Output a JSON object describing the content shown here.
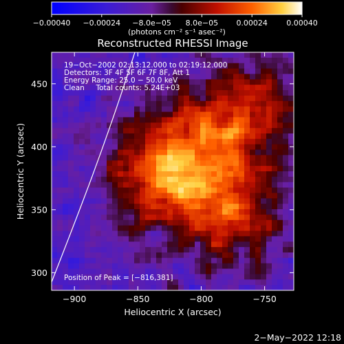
{
  "chart_data": {
    "type": "heatmap",
    "title": "Reconstructed RHESSI Image",
    "xlabel": "Heliocentric X (arcsec)",
    "ylabel": "Heliocentric Y (arcsec)",
    "xlim": [
      -918,
      -727
    ],
    "ylim": [
      286,
      475
    ],
    "x_ticks": [
      -900,
      -850,
      -800,
      -750
    ],
    "y_ticks": [
      300,
      350,
      400,
      450
    ],
    "x_tick_labels": [
      "−900",
      "−850",
      "−800",
      "−750"
    ],
    "y_tick_labels": [
      "300",
      "350",
      "400",
      "450"
    ],
    "colorbar": {
      "range": [
        -0.0004,
        0.0004
      ],
      "ticks": [
        -0.0004,
        -0.00024,
        -8e-05,
        8e-05,
        0.00024,
        0.0004
      ],
      "tick_labels": [
        "−0.00040",
        "−0.00024",
        "−8.0e−05",
        "8.0e−05",
        "0.00024",
        "0.00040"
      ],
      "label": "(photons cm⁻² s⁻¹ asec⁻²)"
    },
    "annotations": [
      "19−Oct−2002 02:13:12.000 to 02:19:12.000",
      "Detectors: 3F 4F 5F 6F 7F 8F, Att 1",
      "Energy Range: 25.0 − 50.0 keV",
      "Clean     Total counts: 5.24E+03"
    ],
    "peak_label": "Position of Peak = [−816,381]",
    "peak": [
      -816,
      381
    ],
    "colors": {
      "background": "#000000",
      "foreground": "#ffffff"
    }
  },
  "footer": {
    "timestamp": "2−May−2022 12:18"
  }
}
